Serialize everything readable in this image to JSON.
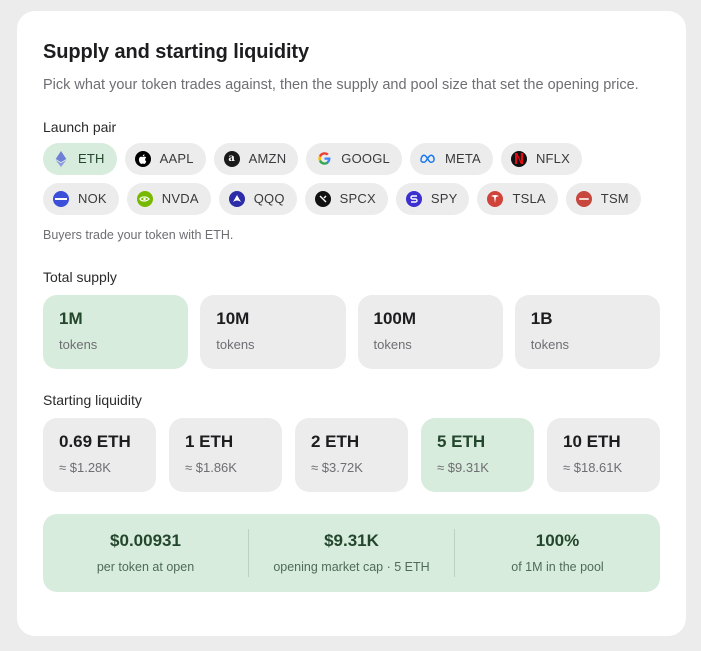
{
  "header": {
    "title": "Supply and starting liquidity",
    "subtitle": "Pick what your token trades against, then the supply and pool size that set the opening price."
  },
  "launch_pair": {
    "label": "Launch pair",
    "selected": "ETH",
    "chips": [
      {
        "label": "ETH",
        "icon": "ethereum-icon",
        "selected": true
      },
      {
        "label": "AAPL",
        "icon": "apple-icon",
        "color": "#000000"
      },
      {
        "label": "AMZN",
        "icon": "amazon-icon",
        "color": "#1a1a1a"
      },
      {
        "label": "GOOGL",
        "icon": "google-icon",
        "color": "#ffffff"
      },
      {
        "label": "META",
        "icon": "meta-icon",
        "color": "#ffffff"
      },
      {
        "label": "NFLX",
        "icon": "netflix-icon",
        "color": "#111111"
      },
      {
        "label": "NOK",
        "icon": "nokia-icon",
        "color": "#3b4fd8"
      },
      {
        "label": "NVDA",
        "icon": "nvidia-icon",
        "color": "#76b900"
      },
      {
        "label": "QQQ",
        "icon": "invesco-icon",
        "color": "#2c2ca8"
      },
      {
        "label": "SPCX",
        "icon": "spacex-icon",
        "color": "#111111"
      },
      {
        "label": "SPY",
        "icon": "spdr-icon",
        "color": "#3b2fd0"
      },
      {
        "label": "TSLA",
        "icon": "tesla-icon",
        "color": "#d0433a"
      },
      {
        "label": "TSM",
        "icon": "tsmc-icon",
        "color": "#c8473d"
      }
    ],
    "helper": "Buyers trade your token with ETH."
  },
  "total_supply": {
    "label": "Total supply",
    "options": [
      {
        "value": "1M",
        "unit": "tokens",
        "selected": true
      },
      {
        "value": "10M",
        "unit": "tokens"
      },
      {
        "value": "100M",
        "unit": "tokens"
      },
      {
        "value": "1B",
        "unit": "tokens"
      }
    ]
  },
  "starting_liquidity": {
    "label": "Starting liquidity",
    "options": [
      {
        "value": "0.69 ETH",
        "usd": "≈ $1.28K"
      },
      {
        "value": "1 ETH",
        "usd": "≈ $1.86K"
      },
      {
        "value": "2 ETH",
        "usd": "≈ $3.72K"
      },
      {
        "value": "5 ETH",
        "usd": "≈ $9.31K",
        "selected": true
      },
      {
        "value": "10 ETH",
        "usd": "≈ $18.61K"
      }
    ]
  },
  "summary": {
    "price": {
      "value": "$0.00931",
      "caption": "per token at open"
    },
    "market_cap": {
      "value": "$9.31K",
      "caption": "opening market cap · 5 ETH"
    },
    "pool": {
      "value": "100%",
      "caption": "of 1M in the pool"
    }
  },
  "colors": {
    "accent_bg": "#d7ecdd",
    "accent_text": "#24462d",
    "chip_bg": "#ececed"
  }
}
